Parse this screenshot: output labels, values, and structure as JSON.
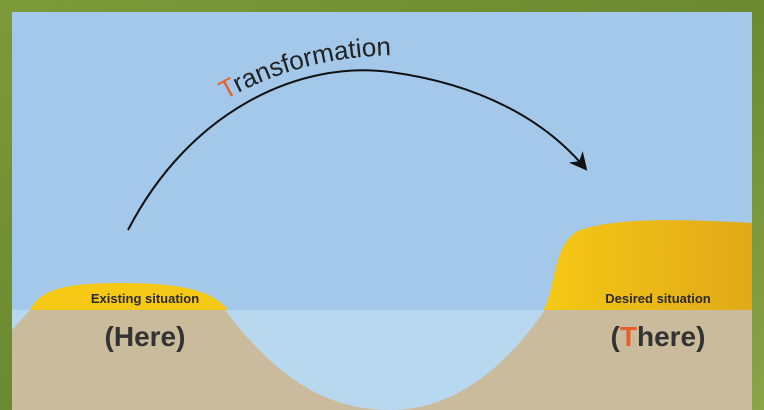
{
  "title": {
    "initial": "T",
    "rest": "ransformation"
  },
  "left": {
    "caption": "Existing situation",
    "label": "(Here)"
  },
  "right": {
    "caption": "Desired situation",
    "label": {
      "open": "(",
      "initial": "T",
      "rest": "here)"
    }
  }
}
